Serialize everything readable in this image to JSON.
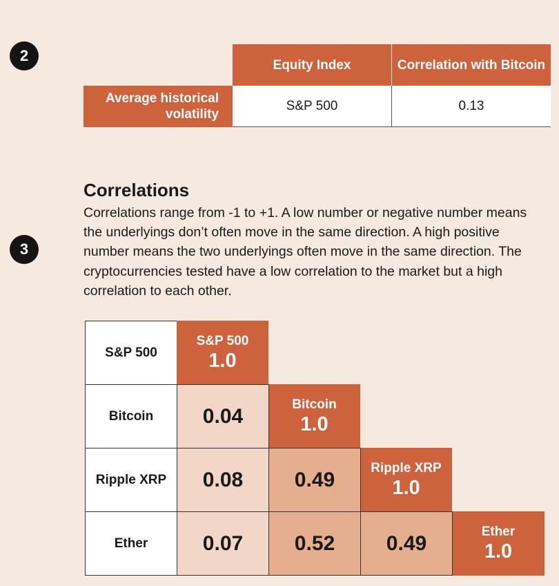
{
  "section2": {
    "badge": "2",
    "header_equity": "Equity Index",
    "header_correlation": "Correlation with Bitcoin",
    "row_label": "Average historical volatility",
    "equity_value": "S&P 500",
    "correlation_value": "0.13"
  },
  "section3": {
    "badge": "3",
    "title": "Correlations",
    "body": "Correlations range from -1 to +1.  A low number or negative number means the underlyings don’t often move in the same direction. A high positive number means the two underlyings often move in the same direction. The cryptocurrencies tested have a low correlation to the market but a high correlation to each other."
  },
  "matrix": {
    "row_labels": [
      "S&P 500",
      "Bitcoin",
      "Ripple XRP",
      "Ether"
    ],
    "diagonal": [
      {
        "name": "S&P 500",
        "value": "1.0"
      },
      {
        "name": "Bitcoin",
        "value": "1.0"
      },
      {
        "name": "Ripple XRP",
        "value": "1.0"
      },
      {
        "name": "Ether",
        "value": "1.0"
      }
    ],
    "values": {
      "bitcoin_sp500": "0.04",
      "ripple_sp500": "0.08",
      "ripple_bitcoin": "0.49",
      "ether_sp500": "0.07",
      "ether_bitcoin": "0.52",
      "ether_ripple": "0.49"
    }
  },
  "colors": {
    "background": "#f6e9e0",
    "accent": "#cd623c",
    "low_correlation_fill": "#f2d7c8",
    "high_correlation_fill": "#e5ae8e",
    "badge": "#141414"
  }
}
